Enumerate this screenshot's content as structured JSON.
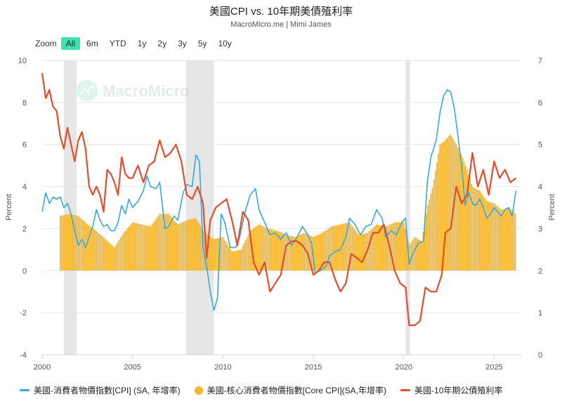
{
  "title": "美國CPI vs. 10年期美債殖利率",
  "subtitle": "MacroMicro.me | Mimi James",
  "watermark": "MacroMicro",
  "zoom": {
    "label": "Zoom",
    "buttons": [
      "All",
      "6m",
      "YTD",
      "1y",
      "2y",
      "3y",
      "5y",
      "10y"
    ],
    "active": "All"
  },
  "colors": {
    "cpi": "#3aa8d8",
    "core": "#f2b632",
    "yield": "#e04e2f",
    "recession": "#e6e6e6",
    "zoom_active": "#40e0b0"
  },
  "chart_data": {
    "type": "line",
    "x_range": [
      2000,
      2026.5
    ],
    "x_ticks": [
      "2000",
      "2005",
      "2010",
      "2015",
      "2020",
      "2025"
    ],
    "y_left": {
      "label": "Percent",
      "range": [
        -4,
        10
      ],
      "ticks": [
        "-4",
        "-2",
        "0",
        "2",
        "4",
        "6",
        "8",
        "10"
      ]
    },
    "y_right": {
      "label": "Percent",
      "range": [
        0,
        7
      ],
      "ticks": [
        "0",
        "1",
        "2",
        "3",
        "4",
        "5",
        "6",
        "7"
      ]
    },
    "grid": true,
    "legend_position": "bottom",
    "recessions": [
      [
        2001.2,
        2001.9
      ],
      [
        2007.95,
        2009.5
      ],
      [
        2020.1,
        2020.35
      ]
    ],
    "series": [
      {
        "name": "美國-消費者物價指數[CPI] (SA, 年增率)",
        "type": "line",
        "axis": "left",
        "x": [
          2000.0,
          2000.2,
          2000.4,
          2000.6,
          2000.8,
          2001.0,
          2001.2,
          2001.4,
          2001.6,
          2001.8,
          2002.0,
          2002.2,
          2002.4,
          2002.6,
          2002.8,
          2003.0,
          2003.2,
          2003.4,
          2003.6,
          2003.8,
          2004.0,
          2004.2,
          2004.4,
          2004.6,
          2004.8,
          2005.0,
          2005.3,
          2005.6,
          2005.8,
          2006.0,
          2006.3,
          2006.5,
          2006.8,
          2007.0,
          2007.3,
          2007.5,
          2007.8,
          2008.0,
          2008.3,
          2008.5,
          2008.7,
          2008.9,
          2009.1,
          2009.3,
          2009.5,
          2009.7,
          2009.9,
          2010.1,
          2010.4,
          2010.7,
          2010.9,
          2011.2,
          2011.5,
          2011.8,
          2012.0,
          2012.3,
          2012.6,
          2012.9,
          2013.2,
          2013.5,
          2013.8,
          2014.1,
          2014.4,
          2014.7,
          2014.9,
          2015.1,
          2015.4,
          2015.7,
          2015.9,
          2016.2,
          2016.5,
          2016.8,
          2017.0,
          2017.3,
          2017.6,
          2017.9,
          2018.2,
          2018.5,
          2018.8,
          2019.0,
          2019.3,
          2019.6,
          2019.9,
          2020.1,
          2020.3,
          2020.5,
          2020.8,
          2021.1,
          2021.3,
          2021.5,
          2021.8,
          2022.0,
          2022.2,
          2022.4,
          2022.6,
          2022.8,
          2023.0,
          2023.2,
          2023.4,
          2023.6,
          2023.8,
          2024.0,
          2024.2,
          2024.4,
          2024.6,
          2024.8,
          2025.0,
          2025.2,
          2025.4,
          2025.6,
          2025.8,
          2026.0,
          2026.2
        ],
        "values": [
          2.8,
          3.7,
          3.2,
          3.5,
          3.4,
          3.5,
          3.0,
          3.2,
          2.7,
          1.9,
          1.2,
          1.5,
          1.1,
          1.6,
          2.1,
          2.9,
          2.4,
          2.1,
          2.2,
          1.9,
          1.9,
          2.3,
          3.1,
          2.7,
          3.4,
          3.0,
          3.3,
          3.8,
          4.5,
          4.0,
          3.9,
          4.2,
          2.0,
          2.1,
          2.6,
          2.4,
          3.7,
          4.1,
          4.0,
          5.5,
          5.2,
          1.1,
          0.2,
          -1.0,
          -1.9,
          -1.3,
          2.7,
          2.3,
          1.1,
          1.1,
          1.5,
          2.7,
          3.6,
          3.9,
          2.9,
          2.3,
          1.7,
          1.8,
          1.5,
          1.8,
          1.2,
          1.6,
          2.1,
          1.7,
          1.3,
          -0.1,
          0.0,
          0.2,
          0.7,
          0.9,
          1.0,
          1.6,
          2.5,
          2.2,
          1.7,
          2.1,
          2.2,
          2.9,
          2.5,
          1.6,
          1.9,
          1.7,
          2.3,
          2.5,
          0.3,
          0.8,
          1.3,
          1.4,
          4.2,
          5.4,
          6.2,
          7.5,
          8.3,
          8.6,
          8.5,
          7.7,
          6.4,
          5.0,
          3.1,
          3.7,
          3.2,
          3.1,
          3.4,
          3.0,
          2.5,
          2.7,
          3.0,
          2.8,
          2.6,
          2.9,
          3.0,
          2.6,
          3.8
        ]
      },
      {
        "name": "美國-核心消費者物價指數[Core CPI](SA,年增率)",
        "type": "bar",
        "axis": "left",
        "x": [
          2001.0,
          2001.5,
          2002.0,
          2002.5,
          2003.0,
          2003.5,
          2004.0,
          2004.5,
          2005.0,
          2005.5,
          2006.0,
          2006.5,
          2007.0,
          2007.5,
          2008.0,
          2008.5,
          2009.0,
          2009.5,
          2010.0,
          2010.5,
          2011.0,
          2011.5,
          2012.0,
          2012.5,
          2013.0,
          2013.5,
          2014.0,
          2014.5,
          2015.0,
          2015.5,
          2016.0,
          2016.5,
          2017.0,
          2017.5,
          2018.0,
          2018.5,
          2019.0,
          2019.5,
          2020.0,
          2020.3,
          2020.6,
          2021.0,
          2021.3,
          2021.6,
          2022.0,
          2022.3,
          2022.6,
          2022.9,
          2023.2,
          2023.5,
          2023.8,
          2024.2,
          2024.6,
          2025.0,
          2025.4,
          2025.8,
          2026.2
        ],
        "values": [
          2.6,
          2.7,
          2.6,
          2.2,
          1.9,
          1.5,
          1.1,
          1.8,
          2.3,
          2.2,
          2.1,
          2.7,
          2.7,
          2.2,
          2.4,
          2.5,
          1.8,
          1.5,
          1.6,
          0.9,
          1.0,
          1.9,
          2.2,
          2.0,
          1.9,
          1.7,
          1.6,
          1.8,
          1.6,
          1.8,
          2.1,
          2.2,
          2.3,
          1.7,
          1.8,
          2.2,
          2.1,
          2.3,
          2.3,
          1.2,
          1.6,
          1.4,
          3.0,
          4.0,
          6.0,
          6.2,
          6.5,
          6.0,
          5.5,
          4.8,
          4.0,
          3.8,
          3.3,
          3.2,
          2.9,
          3.0,
          2.7
        ]
      },
      {
        "name": "美國-10年期公債殖利率",
        "type": "line",
        "axis": "right",
        "x": [
          2000.0,
          2000.2,
          2000.4,
          2000.6,
          2000.8,
          2001.0,
          2001.2,
          2001.4,
          2001.6,
          2001.8,
          2002.0,
          2002.2,
          2002.4,
          2002.6,
          2002.8,
          2003.0,
          2003.2,
          2003.4,
          2003.6,
          2003.8,
          2004.0,
          2004.2,
          2004.4,
          2004.6,
          2004.8,
          2005.0,
          2005.3,
          2005.6,
          2005.9,
          2006.2,
          2006.5,
          2006.8,
          2007.1,
          2007.4,
          2007.7,
          2008.0,
          2008.3,
          2008.6,
          2008.9,
          2009.1,
          2009.3,
          2009.6,
          2009.9,
          2010.2,
          2010.5,
          2010.8,
          2011.1,
          2011.4,
          2011.7,
          2012.0,
          2012.3,
          2012.6,
          2012.9,
          2013.2,
          2013.5,
          2013.8,
          2014.1,
          2014.4,
          2014.7,
          2015.0,
          2015.3,
          2015.6,
          2015.9,
          2016.2,
          2016.5,
          2016.8,
          2017.1,
          2017.4,
          2017.7,
          2018.0,
          2018.3,
          2018.6,
          2018.9,
          2019.2,
          2019.5,
          2019.8,
          2020.1,
          2020.3,
          2020.6,
          2020.9,
          2021.2,
          2021.5,
          2021.8,
          2022.1,
          2022.3,
          2022.6,
          2022.9,
          2023.2,
          2023.5,
          2023.8,
          2024.1,
          2024.4,
          2024.7,
          2025.0,
          2025.3,
          2025.6,
          2025.9,
          2026.2
        ],
        "values": [
          6.7,
          6.1,
          6.3,
          5.9,
          5.8,
          5.2,
          4.9,
          5.4,
          5.0,
          4.6,
          5.1,
          5.3,
          4.9,
          4.0,
          3.8,
          4.0,
          3.8,
          3.4,
          4.4,
          4.3,
          4.1,
          3.8,
          4.7,
          4.3,
          4.2,
          4.2,
          4.5,
          4.1,
          4.5,
          4.6,
          5.1,
          4.7,
          4.8,
          5.0,
          4.6,
          3.8,
          3.7,
          4.0,
          3.6,
          2.3,
          3.2,
          3.5,
          3.6,
          3.7,
          3.2,
          2.6,
          3.4,
          3.2,
          2.2,
          1.9,
          2.2,
          1.5,
          1.7,
          1.9,
          2.6,
          2.7,
          2.7,
          2.6,
          2.4,
          1.9,
          2.0,
          2.2,
          2.2,
          1.8,
          1.5,
          1.7,
          2.4,
          2.3,
          2.2,
          2.5,
          2.9,
          2.9,
          3.1,
          2.6,
          2.0,
          1.7,
          1.6,
          0.7,
          0.7,
          0.8,
          1.6,
          1.5,
          1.5,
          1.9,
          2.9,
          3.0,
          4.0,
          3.6,
          3.8,
          4.8,
          4.0,
          4.4,
          3.8,
          4.6,
          4.2,
          4.4,
          4.1,
          4.2
        ]
      }
    ]
  }
}
